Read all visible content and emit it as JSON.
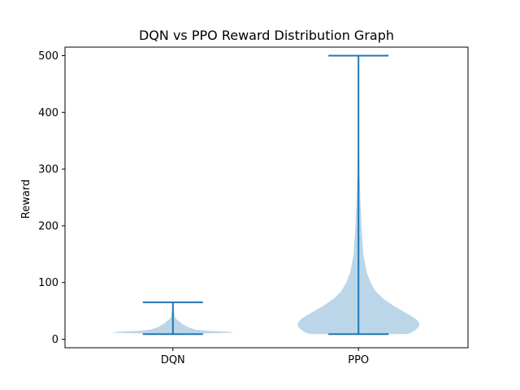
{
  "chart_data": {
    "type": "violin",
    "title": "DQN vs PPO Reward Distribution Graph",
    "xlabel": "",
    "ylabel": "Reward",
    "categories": [
      "DQN",
      "PPO"
    ],
    "ylim": [
      -15,
      515
    ],
    "yticks": [
      0,
      100,
      200,
      300,
      400,
      500
    ],
    "grid": false,
    "colors": {
      "body": "#1f77b4",
      "body_alpha": 0.3,
      "lines": "#1f77b4"
    },
    "series": [
      {
        "category": "DQN",
        "min": 9,
        "max": 65,
        "density": [
          [
            9,
            0.12
          ],
          [
            10,
            0.4
          ],
          [
            11,
            0.9
          ],
          [
            12,
            1.0
          ],
          [
            13,
            0.95
          ],
          [
            14,
            0.75
          ],
          [
            15,
            0.55
          ],
          [
            17,
            0.38
          ],
          [
            20,
            0.28
          ],
          [
            23,
            0.22
          ],
          [
            26,
            0.17
          ],
          [
            29,
            0.13
          ],
          [
            32,
            0.1
          ],
          [
            35,
            0.06
          ],
          [
            40,
            0.03
          ],
          [
            50,
            0.015
          ],
          [
            65,
            0.005
          ]
        ]
      },
      {
        "category": "PPO",
        "min": 9,
        "max": 500,
        "density": [
          [
            9,
            0.8
          ],
          [
            12,
            0.87
          ],
          [
            16,
            0.93
          ],
          [
            22,
            0.99
          ],
          [
            28,
            1.0
          ],
          [
            35,
            0.95
          ],
          [
            42,
            0.85
          ],
          [
            50,
            0.72
          ],
          [
            60,
            0.56
          ],
          [
            72,
            0.4
          ],
          [
            85,
            0.28
          ],
          [
            100,
            0.2
          ],
          [
            120,
            0.13
          ],
          [
            150,
            0.08
          ],
          [
            200,
            0.05
          ],
          [
            250,
            0.03
          ],
          [
            300,
            0.015
          ],
          [
            350,
            0.008
          ],
          [
            400,
            0.004
          ],
          [
            450,
            0.002
          ],
          [
            500,
            0.001
          ]
        ]
      }
    ]
  }
}
